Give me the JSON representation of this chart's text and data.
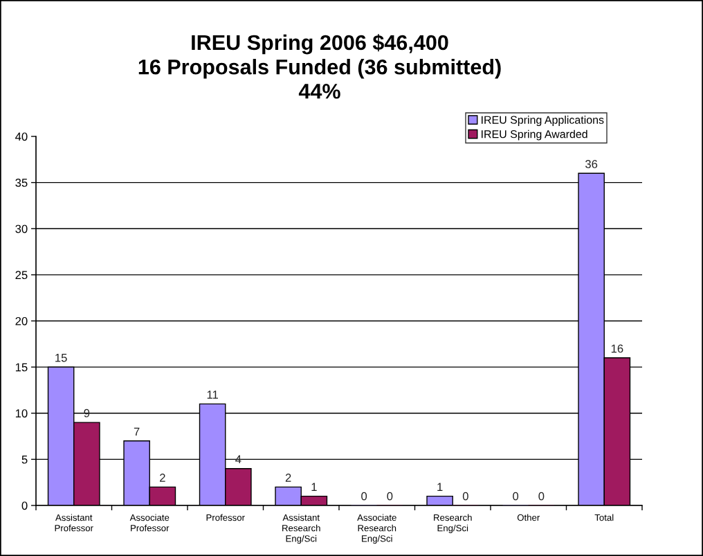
{
  "chart_data": {
    "type": "bar",
    "title": "IREU Spring 2006 $46,400\n16 Proposals Funded (36 submitted)\n44%",
    "categories": [
      "Assistant\nProfessor",
      "Associate\nProfessor",
      "Professor",
      "Assistant\nResearch\nEng/Sci",
      "Associate\nResearch\nEng/Sci",
      "Research\nEng/Sci",
      "Other",
      "Total"
    ],
    "series": [
      {
        "name": "IREU Spring Applications",
        "color": "#a08cff",
        "values": [
          15,
          7,
          11,
          2,
          0,
          1,
          0,
          36
        ]
      },
      {
        "name": "IREU Spring Awarded",
        "color": "#a01a5f",
        "values": [
          9,
          2,
          4,
          1,
          0,
          0,
          0,
          16
        ]
      }
    ],
    "ylim": [
      0,
      40
    ],
    "yticks": [
      0,
      5,
      10,
      15,
      20,
      25,
      30,
      35,
      40
    ],
    "grid": "y",
    "legend": "top right",
    "data_labels": true
  }
}
